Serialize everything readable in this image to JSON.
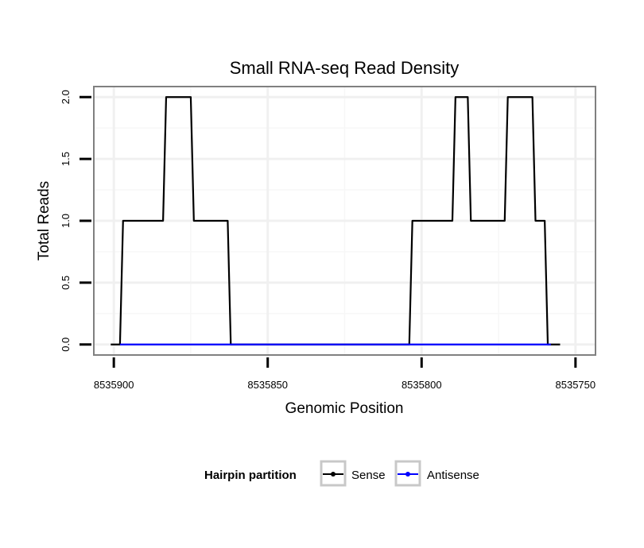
{
  "chart_data": {
    "type": "line",
    "title": "Small RNA-seq Read Density",
    "xlabel": "Genomic Position",
    "ylabel": "Total Reads",
    "x_reversed": true,
    "xlim": [
      8535906.5,
      8535743.5
    ],
    "ylim": [
      -0.085,
      2.085
    ],
    "x_ticks": [
      8535900,
      8535850,
      8535800,
      8535750
    ],
    "x_tick_labels": [
      "8535900",
      "8535850",
      "8535800",
      "8535750"
    ],
    "y_ticks": [
      0.0,
      0.5,
      1.0,
      1.5,
      2.0
    ],
    "y_tick_labels": [
      "0.0",
      "0.5",
      "1.0",
      "1.5",
      "2.0"
    ],
    "grid": true,
    "legend": {
      "title": "Hairpin partition",
      "position": "bottom",
      "entries": [
        {
          "label": "Sense",
          "color": "#000000"
        },
        {
          "label": "Antisense",
          "color": "#0000ff"
        }
      ]
    },
    "series": [
      {
        "name": "Sense",
        "color": "#000000",
        "x": [
          8535901,
          8535898,
          8535897,
          8535884,
          8535883,
          8535875,
          8535874,
          8535863,
          8535862,
          8535804,
          8535803,
          8535790,
          8535789,
          8535785,
          8535784,
          8535773,
          8535772,
          8535764,
          8535763,
          8535760,
          8535759,
          8535758,
          8535755
        ],
        "y": [
          0,
          0,
          1,
          1,
          2,
          2,
          1,
          1,
          0,
          0,
          1,
          1,
          2,
          2,
          1,
          1,
          2,
          2,
          1,
          1,
          0,
          0,
          0
        ]
      },
      {
        "name": "Antisense",
        "color": "#0000ff",
        "x": [
          8535898,
          8535862,
          8535804,
          8535758
        ],
        "y": [
          0,
          0,
          0,
          0
        ]
      }
    ]
  }
}
